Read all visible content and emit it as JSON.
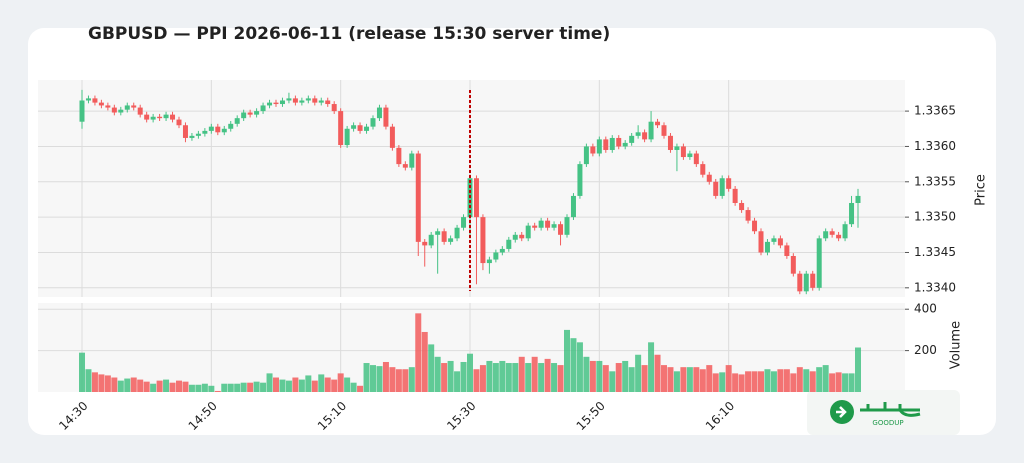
{
  "chart_data": {
    "type": "candlestick",
    "title": "GBPUSD — PPI 2026-06-11 (release 15:30 server time)",
    "categories": [
      "14:30",
      null,
      null,
      null,
      null,
      null,
      null,
      null,
      null,
      null,
      null,
      null,
      null,
      null,
      null,
      null,
      null,
      null,
      null,
      null,
      "14:50",
      null,
      null,
      null,
      null,
      null,
      null,
      null,
      null,
      null,
      null,
      null,
      null,
      null,
      null,
      null,
      null,
      null,
      null,
      null,
      "15:10",
      null,
      null,
      null,
      null,
      null,
      null,
      null,
      null,
      null,
      null,
      null,
      null,
      null,
      null,
      null,
      null,
      null,
      null,
      null,
      "15:30",
      null,
      null,
      null,
      null,
      null,
      null,
      null,
      null,
      null,
      null,
      null,
      null,
      null,
      null,
      null,
      null,
      null,
      null,
      null,
      "15:50",
      null,
      null,
      null,
      null,
      null,
      null,
      null,
      null,
      null,
      null,
      null,
      null,
      null,
      null,
      null,
      null,
      null,
      null,
      null,
      "16:10",
      null,
      null,
      null,
      null,
      null,
      null,
      null,
      null,
      null,
      null,
      null,
      null,
      null,
      null,
      null,
      null,
      null,
      null,
      null,
      null
    ],
    "open": [
      1.33635,
      1.33665,
      1.33668,
      1.33662,
      1.33658,
      1.33655,
      1.33648,
      1.33652,
      1.33658,
      1.33655,
      1.33645,
      1.33638,
      1.33642,
      1.3364,
      1.33645,
      1.33638,
      1.3363,
      1.33612,
      1.33615,
      1.33618,
      1.33622,
      1.33628,
      1.3362,
      1.33625,
      1.33632,
      1.3364,
      1.33648,
      1.33645,
      1.3365,
      1.33658,
      1.33662,
      1.3366,
      1.33665,
      1.33668,
      1.33662,
      1.33665,
      1.33668,
      1.33662,
      1.33665,
      1.3366,
      1.3365,
      1.33602,
      1.33625,
      1.3363,
      1.33622,
      1.33628,
      1.3364,
      1.33655,
      1.33628,
      1.33598,
      1.33575,
      1.3357,
      1.3359,
      1.33465,
      1.3346,
      1.33475,
      1.3348,
      1.33465,
      1.3347,
      1.33485,
      1.335,
      1.33555,
      1.335,
      1.33435,
      1.3344,
      1.3345,
      1.33455,
      1.33468,
      1.33475,
      1.3347,
      1.33488,
      1.33485,
      1.33495,
      1.33485,
      1.3349,
      1.33475,
      1.335,
      1.3353,
      1.33575,
      1.336,
      1.3359,
      1.3361,
      1.33595,
      1.33612,
      1.336,
      1.33605,
      1.33615,
      1.3362,
      1.3361,
      1.33635,
      1.3363,
      1.33615,
      1.33595,
      1.336,
      1.33585,
      1.3359,
      1.33575,
      1.3356,
      1.3355,
      1.3353,
      1.33555,
      1.3354,
      1.3352,
      1.3351,
      1.33495,
      1.3348,
      1.3345,
      1.33465,
      1.3347,
      1.3346,
      1.33445,
      1.3342,
      1.33395,
      1.3342,
      1.334,
      1.3347,
      1.3348,
      1.33475,
      1.3347,
      1.3349,
      1.3352
    ],
    "high": [
      1.3368,
      1.33672,
      1.33672,
      1.33666,
      1.33662,
      1.33659,
      1.33656,
      1.33662,
      1.33662,
      1.33659,
      1.33649,
      1.33646,
      1.33646,
      1.33649,
      1.33649,
      1.33642,
      1.33634,
      1.33619,
      1.33622,
      1.33626,
      1.33632,
      1.33632,
      1.33629,
      1.33636,
      1.33644,
      1.33652,
      1.33652,
      1.33654,
      1.33662,
      1.33666,
      1.33666,
      1.33669,
      1.33676,
      1.33672,
      1.33669,
      1.33672,
      1.33672,
      1.33669,
      1.33669,
      1.33664,
      1.33654,
      1.33629,
      1.33634,
      1.33634,
      1.33632,
      1.33644,
      1.33659,
      1.33659,
      1.33632,
      1.33602,
      1.33579,
      1.33594,
      1.33594,
      1.33469,
      1.33479,
      1.33484,
      1.33484,
      1.33474,
      1.33489,
      1.33504,
      1.3356,
      1.33559,
      1.33504,
      1.33444,
      1.33454,
      1.33459,
      1.33472,
      1.33479,
      1.33479,
      1.33492,
      1.33492,
      1.33499,
      1.33499,
      1.33494,
      1.33494,
      1.33504,
      1.33534,
      1.33579,
      1.33604,
      1.33604,
      1.33614,
      1.33614,
      1.33616,
      1.33616,
      1.33609,
      1.33619,
      1.3363,
      1.33624,
      1.3365,
      1.33639,
      1.33634,
      1.33619,
      1.33604,
      1.33604,
      1.33594,
      1.33594,
      1.33579,
      1.33564,
      1.33554,
      1.33559,
      1.33559,
      1.33544,
      1.33524,
      1.33514,
      1.33499,
      1.33484,
      1.33469,
      1.33474,
      1.33474,
      1.33464,
      1.33449,
      1.33424,
      1.33424,
      1.33424,
      1.33474,
      1.33484,
      1.33484,
      1.33479,
      1.33494,
      1.3353,
      1.3354
    ],
    "low": [
      1.33625,
      1.33661,
      1.33658,
      1.33654,
      1.33651,
      1.33644,
      1.33644,
      1.33648,
      1.33651,
      1.33641,
      1.33634,
      1.33634,
      1.33636,
      1.33636,
      1.33634,
      1.33626,
      1.33606,
      1.33608,
      1.33611,
      1.33614,
      1.33618,
      1.33616,
      1.33616,
      1.33621,
      1.33628,
      1.33636,
      1.33641,
      1.33641,
      1.33646,
      1.33654,
      1.33656,
      1.33656,
      1.33661,
      1.33658,
      1.33658,
      1.33661,
      1.33658,
      1.33658,
      1.33656,
      1.33646,
      1.33598,
      1.33598,
      1.33621,
      1.33618,
      1.33618,
      1.33624,
      1.33636,
      1.33624,
      1.33594,
      1.33571,
      1.33566,
      1.33566,
      1.33445,
      1.3343,
      1.33456,
      1.3342,
      1.33461,
      1.33461,
      1.33466,
      1.33481,
      1.3347,
      1.33405,
      1.33425,
      1.3342,
      1.33436,
      1.33446,
      1.33451,
      1.33464,
      1.33466,
      1.33466,
      1.33481,
      1.33481,
      1.33481,
      1.33481,
      1.3346,
      1.33471,
      1.33496,
      1.33526,
      1.33571,
      1.33586,
      1.33586,
      1.33591,
      1.33591,
      1.33596,
      1.33596,
      1.33601,
      1.33611,
      1.33606,
      1.33606,
      1.33626,
      1.33611,
      1.33591,
      1.33565,
      1.33581,
      1.33581,
      1.33571,
      1.33556,
      1.33546,
      1.33526,
      1.33526,
      1.33536,
      1.33516,
      1.33506,
      1.33491,
      1.33476,
      1.33446,
      1.33446,
      1.33461,
      1.33456,
      1.33441,
      1.33416,
      1.33391,
      1.33391,
      1.33396,
      1.33396,
      1.33466,
      1.33471,
      1.33466,
      1.33466,
      1.33486,
      1.33485
    ],
    "close": [
      1.33665,
      1.33668,
      1.33662,
      1.33658,
      1.33655,
      1.33648,
      1.33652,
      1.33658,
      1.33655,
      1.33645,
      1.33638,
      1.33642,
      1.3364,
      1.33645,
      1.33638,
      1.3363,
      1.33612,
      1.33615,
      1.33618,
      1.33622,
      1.33628,
      1.3362,
      1.33625,
      1.33632,
      1.3364,
      1.33648,
      1.33645,
      1.3365,
      1.33658,
      1.33662,
      1.3366,
      1.33665,
      1.33668,
      1.33662,
      1.33665,
      1.33668,
      1.33662,
      1.33665,
      1.3366,
      1.3365,
      1.33602,
      1.33625,
      1.3363,
      1.33622,
      1.33628,
      1.3364,
      1.33655,
      1.33628,
      1.33598,
      1.33575,
      1.3357,
      1.3359,
      1.33465,
      1.3346,
      1.33475,
      1.3348,
      1.33465,
      1.3347,
      1.33485,
      1.335,
      1.33555,
      1.335,
      1.33435,
      1.3344,
      1.3345,
      1.33455,
      1.33468,
      1.33475,
      1.3347,
      1.33488,
      1.33485,
      1.33495,
      1.33485,
      1.3349,
      1.33475,
      1.335,
      1.3353,
      1.33575,
      1.336,
      1.3359,
      1.3361,
      1.33595,
      1.33612,
      1.336,
      1.33605,
      1.33615,
      1.3362,
      1.3361,
      1.33635,
      1.3363,
      1.33615,
      1.33595,
      1.336,
      1.33585,
      1.3359,
      1.33575,
      1.3356,
      1.3355,
      1.3353,
      1.33555,
      1.3354,
      1.3352,
      1.3351,
      1.33495,
      1.3348,
      1.3345,
      1.33465,
      1.3347,
      1.3346,
      1.33445,
      1.3342,
      1.33395,
      1.3342,
      1.334,
      1.3347,
      1.3348,
      1.33475,
      1.3347,
      1.3349,
      1.3352,
      1.3353
    ],
    "volume": [
      190,
      110,
      95,
      85,
      80,
      70,
      55,
      65,
      70,
      60,
      50,
      40,
      55,
      60,
      45,
      55,
      50,
      35,
      35,
      40,
      30,
      5,
      40,
      40,
      40,
      45,
      45,
      50,
      45,
      90,
      70,
      60,
      55,
      70,
      60,
      80,
      55,
      85,
      70,
      60,
      90,
      70,
      45,
      30,
      140,
      130,
      125,
      145,
      120,
      110,
      110,
      120,
      380,
      290,
      230,
      170,
      140,
      150,
      100,
      145,
      185,
      110,
      130,
      150,
      140,
      150,
      140,
      140,
      170,
      140,
      170,
      140,
      160,
      140,
      130,
      300,
      260,
      240,
      170,
      150,
      150,
      130,
      100,
      140,
      150,
      120,
      180,
      130,
      240,
      180,
      130,
      120,
      100,
      120,
      120,
      120,
      110,
      130,
      90,
      95,
      130,
      90,
      85,
      100,
      100,
      100,
      110,
      100,
      110,
      110,
      90,
      120,
      110,
      100,
      120,
      130,
      90,
      95,
      90,
      90,
      215
    ],
    "up_color": "#45c285",
    "down_color": "#f25c5c",
    "ylim": [
      1.33387,
      1.33694
    ],
    "yticks": [
      {
        "value": 1.334,
        "label": "1.3340"
      },
      1.3345,
      {
        "value": 1.335,
        "label": "1.3350"
      },
      1.3355,
      {
        "value": 1.336,
        "label": "1.3360"
      },
      1.3365
    ],
    "ylabel": "Price",
    "volume_ylim": [
      0,
      430
    ],
    "volume_yticks": [
      200,
      400
    ],
    "volume_label": "Volume",
    "grid": true,
    "event_line": {
      "x": "15:30",
      "color": "#c00000"
    }
  },
  "logo": {
    "text": "GOODUP"
  }
}
